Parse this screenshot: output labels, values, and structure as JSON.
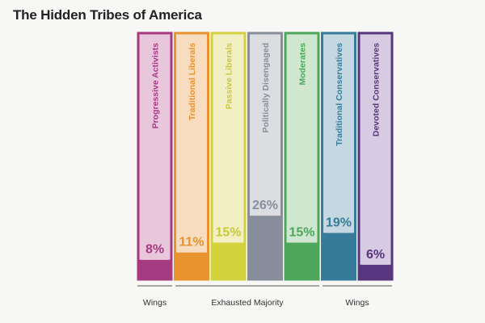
{
  "title": "The Hidden Tribes of America",
  "chart_data": {
    "type": "bar",
    "title": "The Hidden Tribes of America",
    "categories": [
      "Progressive Activists",
      "Traditional Liberals",
      "Passive Liberals",
      "Politically Disengaged",
      "Moderates",
      "Traditional Conservatives",
      "Devoted Conservatives"
    ],
    "values": [
      8,
      11,
      15,
      26,
      15,
      19,
      6
    ],
    "value_labels": [
      "8%",
      "11%",
      "15%",
      "26%",
      "15%",
      "19%",
      "6%"
    ],
    "ylim": [
      0,
      100
    ],
    "colors": {
      "Progressive Activists": {
        "solid": "#a63a80",
        "light": "#e8c6dc",
        "text": "#a63a80"
      },
      "Traditional Liberals": {
        "solid": "#e8932e",
        "light": "#f7dcc0",
        "text": "#e8932e"
      },
      "Passive Liberals": {
        "solid": "#d4d23c",
        "light": "#f2f0c2",
        "text": "#c9c83a"
      },
      "Politically Disengaged": {
        "solid": "#878d9a",
        "light": "#dcdde0",
        "text": "#878d9a"
      },
      "Moderates": {
        "solid": "#4da65a",
        "light": "#cfe6cf",
        "text": "#4da65a"
      },
      "Traditional Conservatives": {
        "solid": "#367b99",
        "light": "#c5d7e0",
        "text": "#367b99"
      },
      "Devoted Conservatives": {
        "solid": "#58357f",
        "light": "#d6cbe2",
        "text": "#58357f"
      }
    },
    "groups": [
      {
        "label": "Wings",
        "categories": [
          "Progressive Activists"
        ]
      },
      {
        "label": "Exhausted Majority",
        "categories": [
          "Traditional Liberals",
          "Passive Liberals",
          "Politically Disengaged",
          "Moderates"
        ]
      },
      {
        "label": "Wings",
        "categories": [
          "Traditional Conservatives",
          "Devoted Conservatives"
        ]
      }
    ],
    "grid": false,
    "legend": "none"
  }
}
